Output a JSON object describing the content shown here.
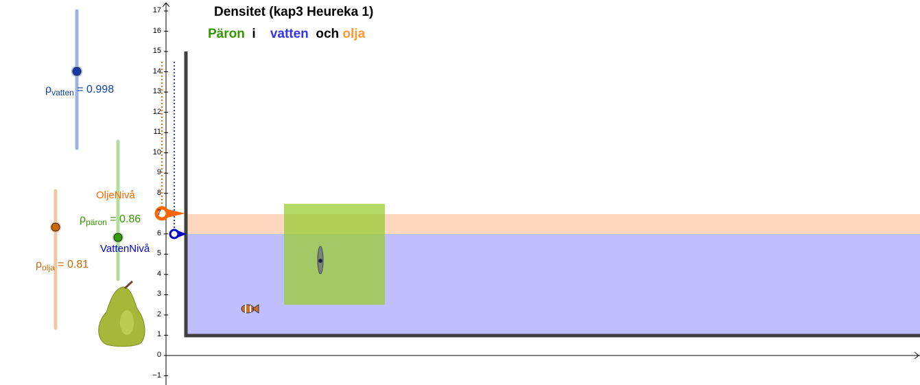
{
  "title": "Densitet (kap3 Heureka 1)",
  "subtitle": [
    {
      "text": "Päron",
      "color": "#339900"
    },
    {
      "text": "i",
      "color": "#000000"
    },
    {
      "text": "vatten",
      "color": "#3333ff"
    },
    {
      "text": "och",
      "color": "#000000"
    },
    {
      "text": "olja",
      "color": "#ff9933"
    }
  ],
  "sliders": {
    "vatten": {
      "symbol": "ρ",
      "sub": "vatten",
      "value_text": "= 0.998",
      "value": 0.998,
      "color": "#0d3fa6",
      "track": "#9db4e0"
    },
    "paron": {
      "symbol": "ρ",
      "sub": "päron",
      "value_text": "= 0.86",
      "value": 0.86,
      "color": "#339900",
      "track": "#b0dc9c"
    },
    "olja": {
      "symbol": "ρ",
      "sub": "olja",
      "value_text": "= 0.81",
      "value": 0.81,
      "color": "#cc6600",
      "track": "#f0c8a0"
    }
  },
  "points": {
    "oil_level": {
      "label": "OljeNivå",
      "y": 7,
      "color": "#ff6600"
    },
    "water_level": {
      "label": "VattenNivå",
      "y": 6,
      "color": "#0000cc"
    }
  },
  "y_axis_ticks": [
    "17",
    "16",
    "15",
    "14",
    "13",
    "12",
    "11",
    "10",
    "9",
    "8",
    "7",
    "6",
    "5",
    "4",
    "3",
    "2",
    "1",
    "0",
    "−1"
  ],
  "colors": {
    "water": "#bfbfff",
    "oil": "#ffd9bf",
    "pear_block": "#99cc33",
    "container": "#404040"
  }
}
